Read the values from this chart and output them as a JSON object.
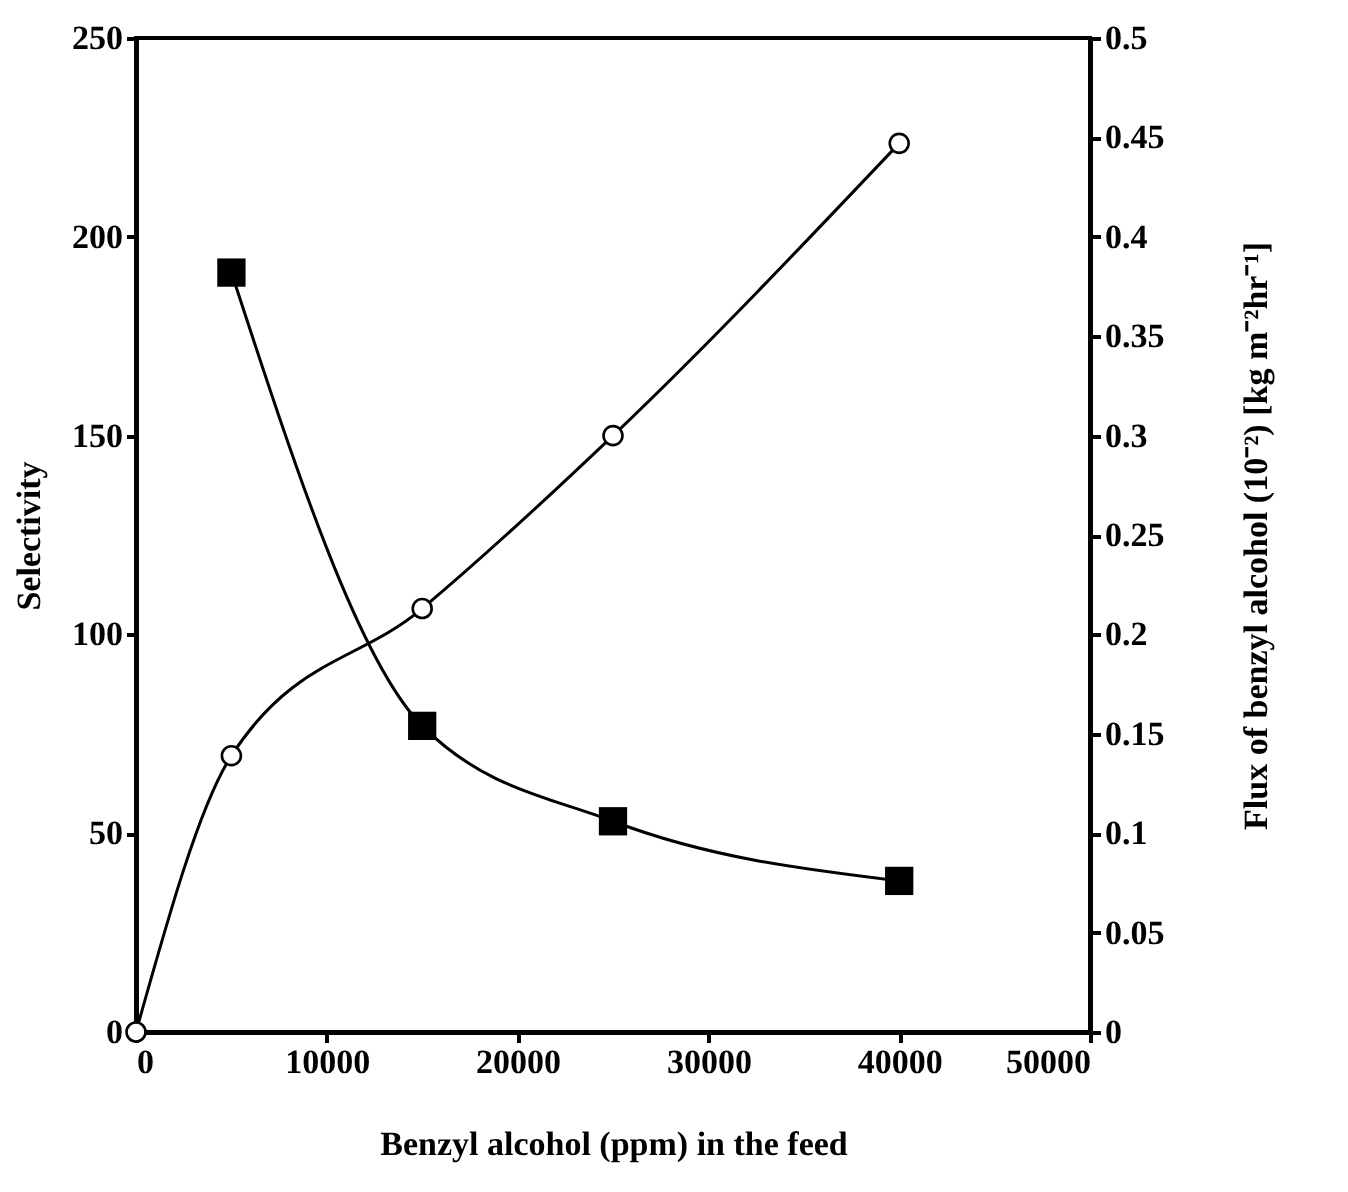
{
  "chart_data": {
    "type": "line",
    "xlabel": "Benzyl alcohol (ppm) in the feed",
    "ylabel": "Selectivity",
    "y2label": "Flux of benzyl alcohol (10⁻²) [kg m⁻²hr⁻¹]",
    "xlim": [
      0,
      50000
    ],
    "xticks": [
      0,
      10000,
      20000,
      30000,
      40000,
      50000
    ],
    "ylim": [
      0,
      250
    ],
    "yticks": [
      0,
      50,
      100,
      150,
      200,
      250
    ],
    "y2lim": [
      0,
      0.5
    ],
    "y2ticks": [
      0,
      0.05,
      0.1,
      0.15,
      0.2,
      0.25,
      0.3,
      0.35,
      0.4,
      0.45,
      0.5
    ],
    "grid": false,
    "line_style": "solid",
    "series": [
      {
        "color": "#000000",
        "marker": "square",
        "x": [
          5000,
          15000,
          25000,
          40000
        ],
        "values": [
          191,
          77,
          53,
          38
        ]
      },
      {
        "color": "#000000",
        "marker": "circle",
        "axis": "y2",
        "x": [
          0,
          5000,
          15000,
          25000,
          40000
        ],
        "values": [
          0,
          0.139,
          0.213,
          0.3,
          0.447
        ]
      }
    ]
  }
}
